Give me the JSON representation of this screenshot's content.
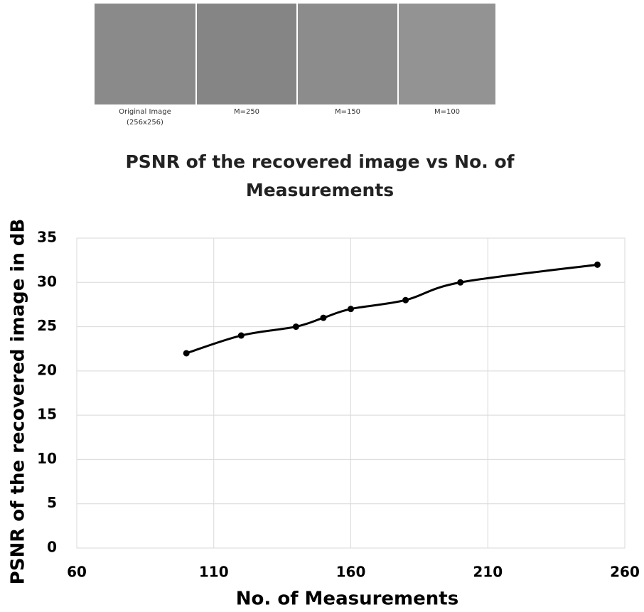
{
  "images": [
    {
      "caption": [
        "Original Image",
        "(256x256)"
      ]
    },
    {
      "caption": [
        "M=250"
      ]
    },
    {
      "caption": [
        "M=150"
      ]
    },
    {
      "caption": [
        "M=100"
      ]
    }
  ],
  "chart_data": {
    "type": "line",
    "title": "PSNR of the recovered image vs No. of Measurements",
    "x_label": "No. of Measurements",
    "y_label": "PSNR of the recovered image in dB",
    "x": [
      100,
      120,
      140,
      150,
      160,
      180,
      200,
      250
    ],
    "y": [
      22,
      24,
      25,
      26,
      27,
      28,
      30,
      32
    ],
    "color": "#000000",
    "xlim": [
      60,
      260
    ],
    "xticks": [
      60,
      110,
      160,
      210,
      260
    ],
    "ylim": [
      0,
      35
    ],
    "yticks": [
      0,
      5,
      10,
      15,
      20,
      25,
      30,
      35
    ],
    "grid": true,
    "smooth": true,
    "markers": true
  }
}
